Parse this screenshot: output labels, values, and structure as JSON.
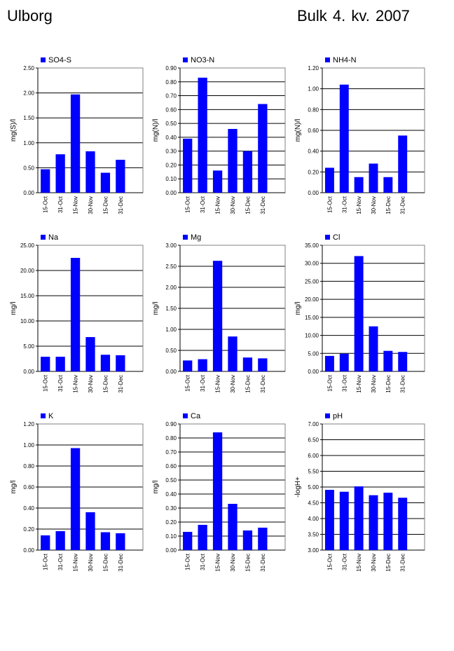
{
  "header": {
    "site": "Ulborg",
    "period": "Bulk  4. kv. 2007"
  },
  "colors": {
    "bar": "#0000FF",
    "grid": "#000000",
    "text": "#000000"
  },
  "chart_data": [
    {
      "type": "bar",
      "title": "SO4-S",
      "legend": "SO4-S",
      "ylabel": "mg(S)/l",
      "categories": [
        "15-Oct",
        "31-Oct",
        "15-Nov",
        "30-Nov",
        "15-Dec",
        "31-Dec"
      ],
      "values": [
        0.47,
        0.77,
        1.97,
        0.83,
        0.4,
        0.66
      ],
      "ylim": [
        0,
        2.5
      ],
      "yticks": [
        "0.00",
        "0.50",
        "1.00",
        "1.50",
        "2.00",
        "2.50"
      ],
      "grid": true,
      "legend_position": "top-left"
    },
    {
      "type": "bar",
      "title": "NO3-N",
      "legend": "NO3-N",
      "ylabel": "mg(N)/l",
      "categories": [
        "15-Oct",
        "31-Oct",
        "15-Nov",
        "30-Nov",
        "15-Dec",
        "31-Dec"
      ],
      "values": [
        0.39,
        0.83,
        0.16,
        0.46,
        0.3,
        0.64
      ],
      "ylim": [
        0,
        0.9
      ],
      "yticks": [
        "0.00",
        "0.10",
        "0.20",
        "0.30",
        "0.40",
        "0.50",
        "0.60",
        "0.70",
        "0.80",
        "0.90"
      ],
      "grid": true,
      "legend_position": "top-left"
    },
    {
      "type": "bar",
      "title": "NH4-N",
      "legend": "NH4-N",
      "ylabel": "mg(N)/l",
      "categories": [
        "15-Oct",
        "31-Oct",
        "15-Nov",
        "30-Nov",
        "15-Dec",
        "31-Dec"
      ],
      "values": [
        0.24,
        1.04,
        0.15,
        0.28,
        0.15,
        0.55
      ],
      "ylim": [
        0,
        1.2
      ],
      "yticks": [
        "0.00",
        "0.20",
        "0.40",
        "0.60",
        "0.80",
        "1.00",
        "1.20"
      ],
      "grid": true,
      "legend_position": "top-left"
    },
    {
      "type": "bar",
      "title": "Na",
      "legend": "Na",
      "ylabel": "mg/l",
      "categories": [
        "15-Oct",
        "31-Oct",
        "15-Nov",
        "30-Nov",
        "15-Dec",
        "31-Dec"
      ],
      "values": [
        2.9,
        2.9,
        22.5,
        6.8,
        3.3,
        3.2
      ],
      "ylim": [
        0,
        25
      ],
      "yticks": [
        "0.00",
        "5.00",
        "10.00",
        "15.00",
        "20.00",
        "25.00"
      ],
      "grid": true,
      "legend_position": "top-left"
    },
    {
      "type": "bar",
      "title": "Mg",
      "legend": "Mg",
      "ylabel": "mg/l",
      "categories": [
        "15-Oct",
        "31-Oct",
        "15-Nov",
        "30-Nov",
        "15-Dec",
        "31-Dec"
      ],
      "values": [
        0.26,
        0.29,
        2.63,
        0.83,
        0.33,
        0.31
      ],
      "ylim": [
        0,
        3
      ],
      "yticks": [
        "0.00",
        "0.50",
        "1.00",
        "1.50",
        "2.00",
        "2.50",
        "3.00"
      ],
      "grid": true,
      "legend_position": "top-left"
    },
    {
      "type": "bar",
      "title": "Cl",
      "legend": "Cl",
      "ylabel": "mg/l",
      "categories": [
        "15-Oct",
        "31-Oct",
        "15-Nov",
        "30-Nov",
        "15-Dec",
        "31-Dec"
      ],
      "values": [
        4.3,
        4.9,
        32.0,
        12.5,
        5.7,
        5.4
      ],
      "ylim": [
        0,
        35
      ],
      "yticks": [
        "0.00",
        "5.00",
        "10.00",
        "15.00",
        "20.00",
        "25.00",
        "30.00",
        "35.00"
      ],
      "grid": true,
      "legend_position": "top-left"
    },
    {
      "type": "bar",
      "title": "K",
      "legend": "K",
      "ylabel": "mg/l",
      "categories": [
        "15-Oct",
        "31-Oct",
        "15-Nov",
        "30-Nov",
        "15-Dec",
        "31-Dec"
      ],
      "values": [
        0.14,
        0.18,
        0.97,
        0.36,
        0.17,
        0.16
      ],
      "ylim": [
        0,
        1.2
      ],
      "yticks": [
        "0.00",
        "0.20",
        "0.40",
        "0.60",
        "0.80",
        "1.00",
        "1.20"
      ],
      "grid": true,
      "legend_position": "top-left"
    },
    {
      "type": "bar",
      "title": "Ca",
      "legend": "Ca",
      "ylabel": "mg/l",
      "categories": [
        "15-Oct",
        "31-Oct",
        "15-Nov",
        "30-Nov",
        "15-Dec",
        "31-Dec"
      ],
      "values": [
        0.13,
        0.18,
        0.84,
        0.33,
        0.14,
        0.16
      ],
      "ylim": [
        0,
        0.9
      ],
      "yticks": [
        "0.00",
        "0.10",
        "0.20",
        "0.30",
        "0.40",
        "0.50",
        "0.60",
        "0.70",
        "0.80",
        "0.90"
      ],
      "grid": true,
      "legend_position": "top-left"
    },
    {
      "type": "bar",
      "title": "pH",
      "legend": "pH",
      "ylabel": "-logH+",
      "categories": [
        "15-Oct",
        "31-Oct",
        "15-Nov",
        "30-Nov",
        "15-Dec",
        "31-Dec"
      ],
      "values": [
        4.91,
        4.85,
        5.02,
        4.74,
        4.82,
        4.66
      ],
      "ylim": [
        3,
        7
      ],
      "yticks": [
        "3.00",
        "3.50",
        "4.00",
        "4.50",
        "5.00",
        "5.50",
        "6.00",
        "6.50",
        "7.00"
      ],
      "grid": true,
      "legend_position": "top-left"
    }
  ]
}
